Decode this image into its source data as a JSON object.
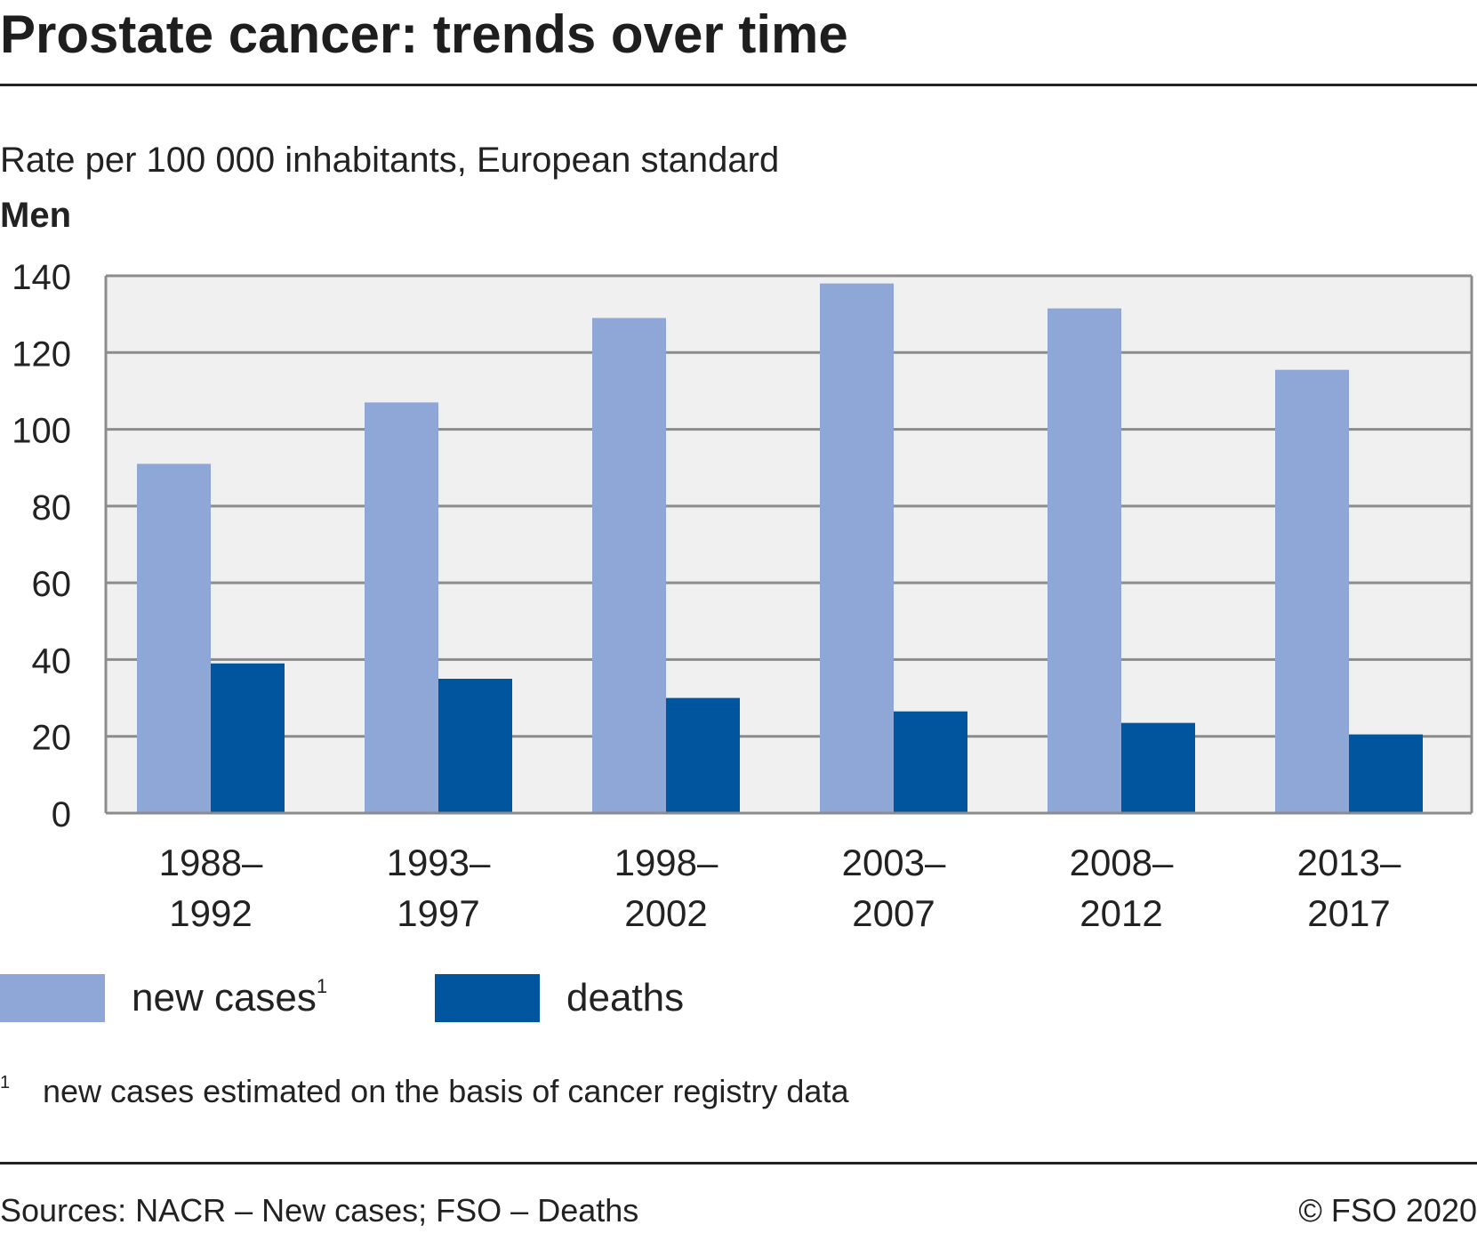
{
  "title": "Prostate cancer: trends over time",
  "subtitle": "Rate per 100 000 inhabitants, European standard",
  "group_label": "Men",
  "footnote": {
    "mark": "1",
    "text": "new cases estimated on the basis of cancer registry data"
  },
  "source": "Sources: NACR – New cases; FSO – Deaths",
  "copyright": "© FSO 2020",
  "legend": [
    {
      "label": "new cases",
      "sup": "1",
      "color": "#8fa7d6"
    },
    {
      "label": "deaths",
      "sup": "",
      "color": "#00569e"
    }
  ],
  "chart_data": {
    "type": "bar",
    "categories": [
      [
        "1988–",
        "1992"
      ],
      [
        "1993–",
        "1997"
      ],
      [
        "1998–",
        "2002"
      ],
      [
        "2003–",
        "2007"
      ],
      [
        "2008–",
        "2012"
      ],
      [
        "2013–",
        "2017"
      ]
    ],
    "series": [
      {
        "name": "new cases",
        "color": "#8fa7d6",
        "values": [
          91,
          107,
          129,
          138,
          131.5,
          115.5
        ]
      },
      {
        "name": "deaths",
        "color": "#00569e",
        "values": [
          39,
          35,
          30,
          26.5,
          23.5,
          20.5
        ]
      }
    ],
    "ylim": [
      0,
      140
    ],
    "yticks": [
      0,
      20,
      40,
      60,
      80,
      100,
      120,
      140
    ],
    "grid": true,
    "plot_background": "#f0f0f0",
    "legend_position": "bottom-left"
  }
}
